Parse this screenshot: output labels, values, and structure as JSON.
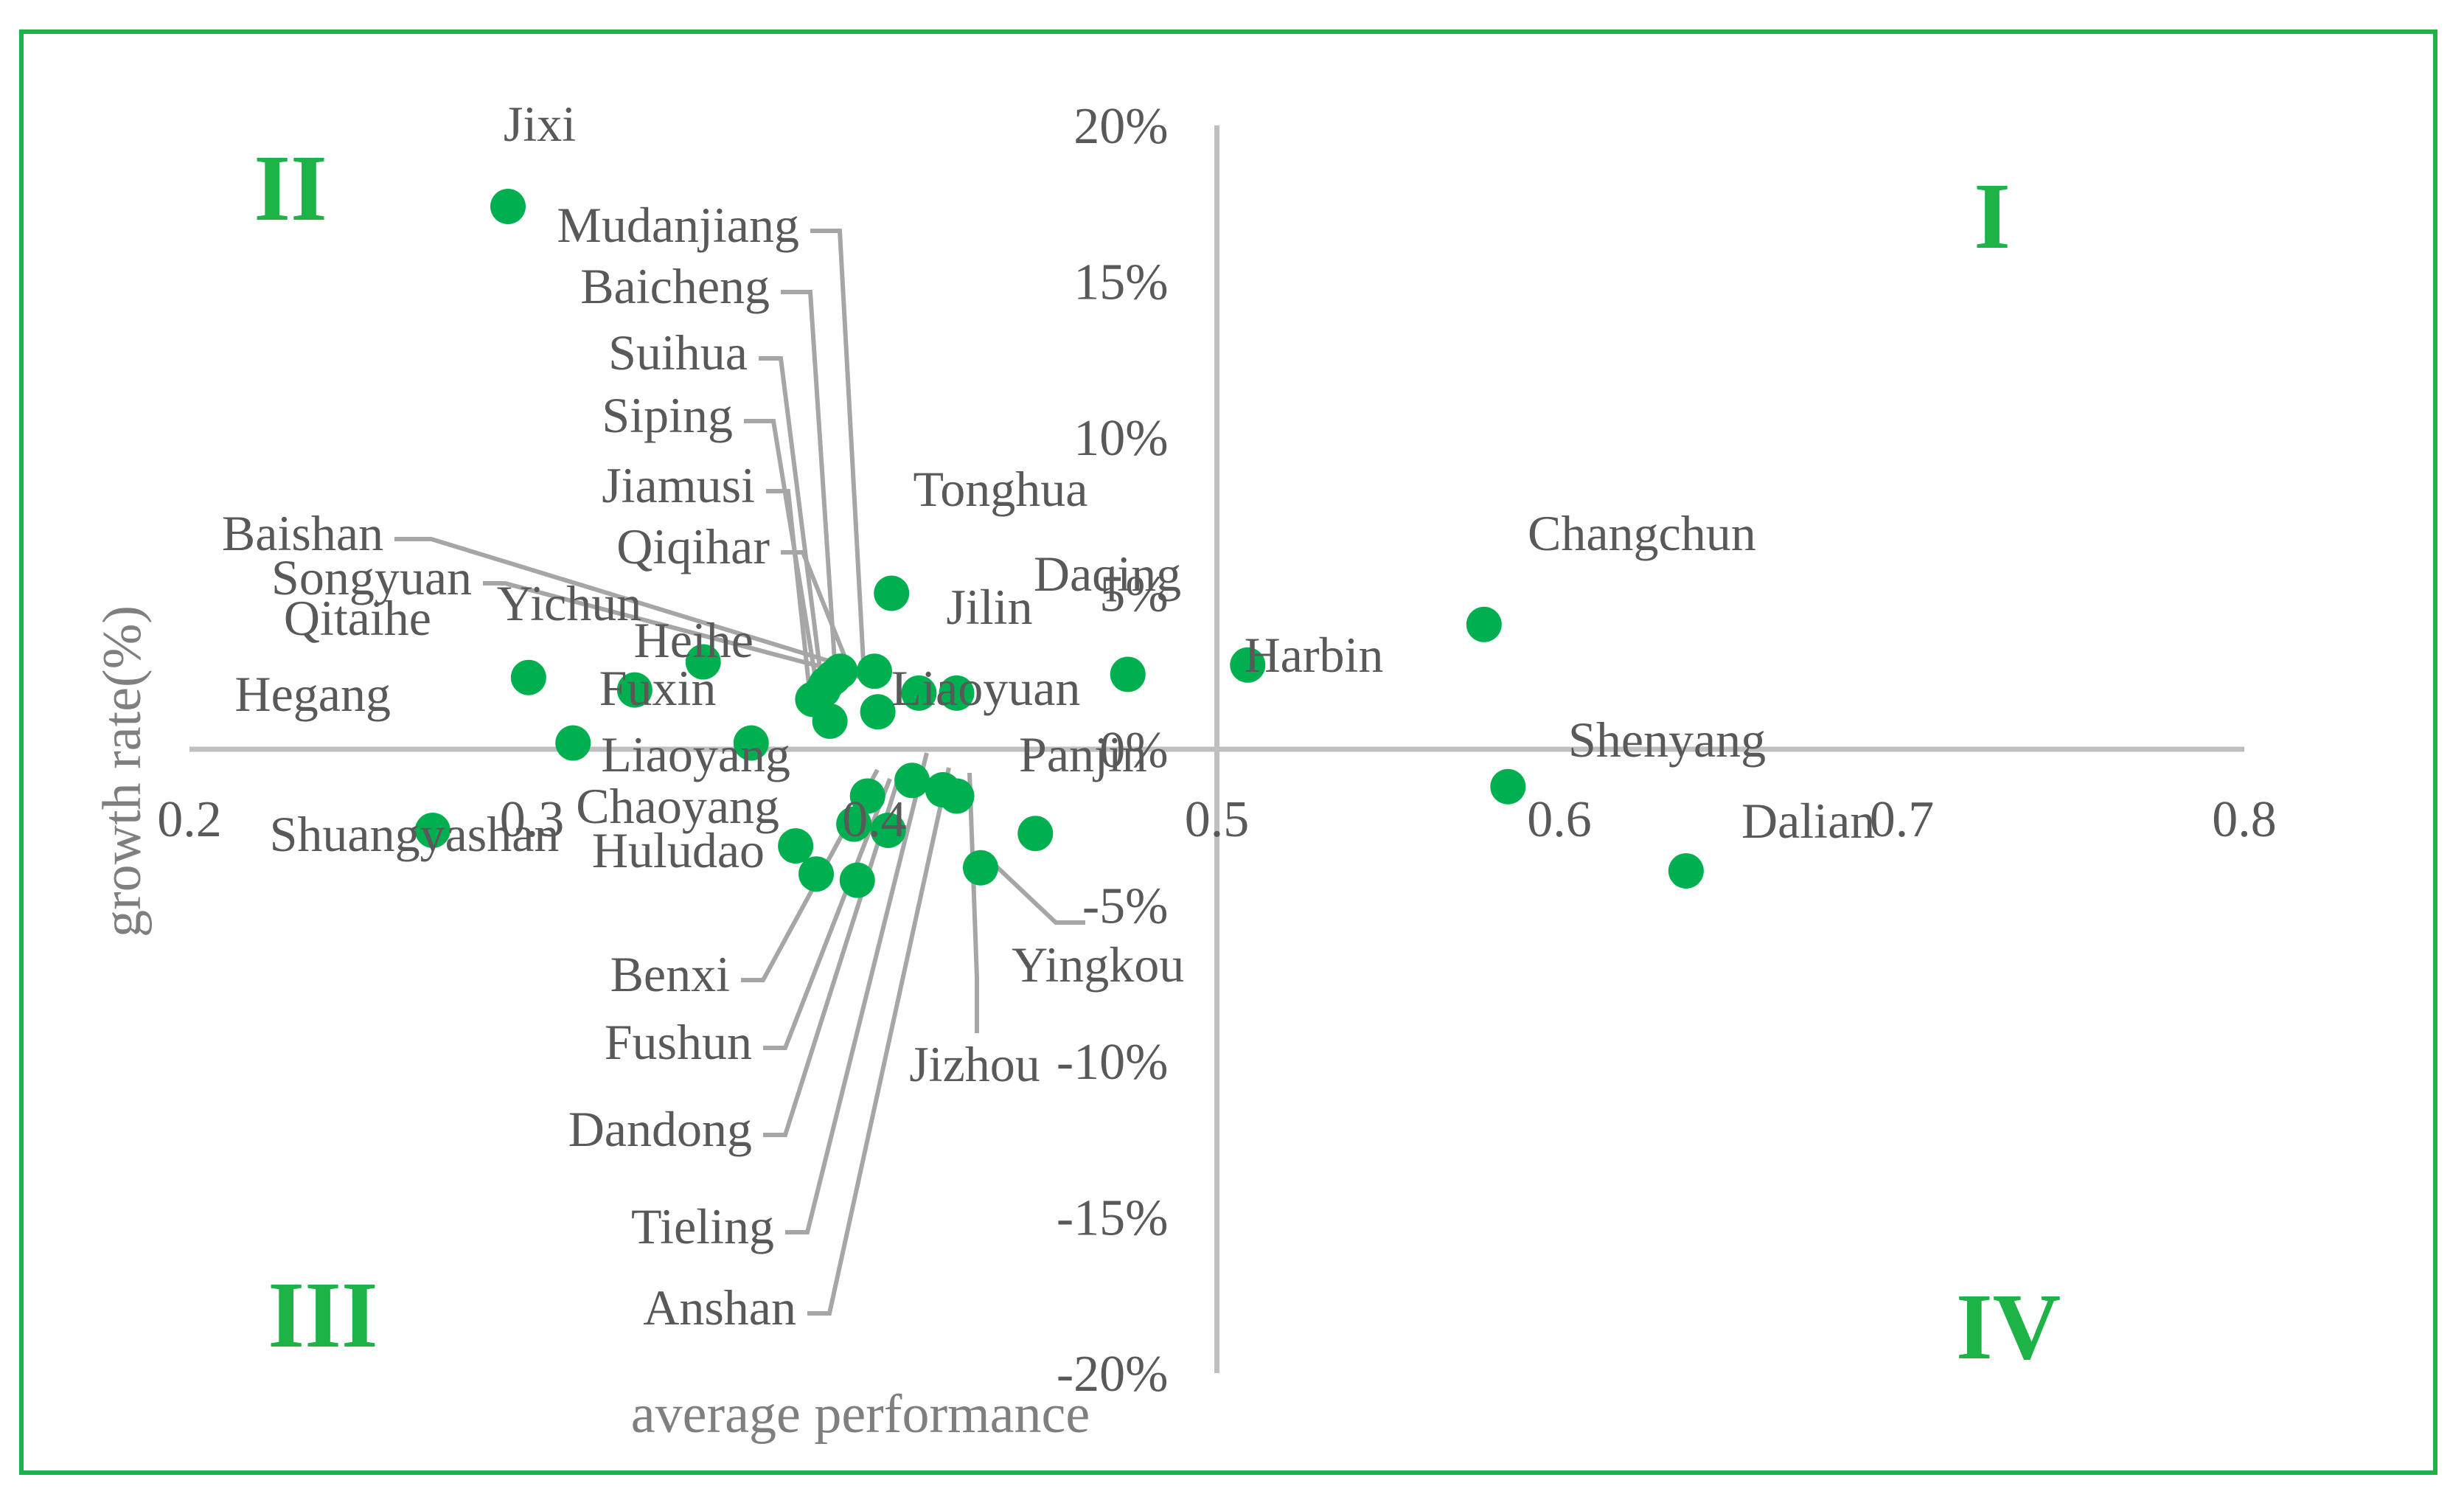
{
  "chart_data": {
    "type": "scatter",
    "title": "",
    "xlabel": "average performance",
    "ylabel": "growth rate(%)",
    "xlim": [
      0.2,
      0.8
    ],
    "ylim": [
      -20,
      20
    ],
    "x_ticks": [
      "0.2",
      "0.3",
      "0.4",
      "0.5",
      "0.6",
      "0.7",
      "0.8"
    ],
    "y_ticks": [
      "20%",
      "15%",
      "10%",
      "5%",
      "0%",
      "-5%",
      "-10%",
      "-15%",
      "-20%"
    ],
    "x_crosses_at": 0.5,
    "y_crosses_at": 0,
    "marker_color": "#00b050",
    "quadrant_color": "#1db347",
    "quadrants": [
      "I",
      "II",
      "III",
      "IV"
    ],
    "points": [
      {
        "label": "Jixi",
        "x": 0.293,
        "y": 17.4
      },
      {
        "label": "Qitaihe",
        "x": 0.299,
        "y": 2.3
      },
      {
        "label": "Yichun",
        "x": 0.33,
        "y": 1.9
      },
      {
        "label": "Hegang",
        "x": 0.312,
        "y": 0.2
      },
      {
        "label": "Shuangyashan",
        "x": 0.271,
        "y": -2.6
      },
      {
        "label": "Baishan",
        "x": 0.35,
        "y": 2.8
      },
      {
        "label": "Fuxin",
        "x": 0.364,
        "y": 0.2
      },
      {
        "label": "Heihe",
        "x": 0.382,
        "y": 1.6
      },
      {
        "label": "Tonghua",
        "x": 0.405,
        "y": 5.0
      },
      {
        "label": "Mudanjiang",
        "x": 0.39,
        "y": 2.5
      },
      {
        "label": "Baicheng",
        "x": 0.388,
        "y": 2.3
      },
      {
        "label": "Suihua",
        "x": 0.386,
        "y": 2.1
      },
      {
        "label": "Siping",
        "x": 0.385,
        "y": 1.9
      },
      {
        "label": "Jiamusi",
        "x": 0.387,
        "y": 0.9
      },
      {
        "label": "Qiqihar",
        "x": 0.4,
        "y": 2.5
      },
      {
        "label": "Songyuan",
        "x": 0.401,
        "y": 1.2
      },
      {
        "label": "Jilin",
        "x": 0.413,
        "y": 1.8
      },
      {
        "label": "Liaoyuan",
        "x": 0.424,
        "y": 1.8
      },
      {
        "label": "Daqing",
        "x": 0.474,
        "y": 2.4
      },
      {
        "label": "Harbin",
        "x": 0.509,
        "y": 2.7
      },
      {
        "label": "Changchun",
        "x": 0.578,
        "y": 4.0
      },
      {
        "label": "Shenyang",
        "x": 0.585,
        "y": -1.2
      },
      {
        "label": "Dalian",
        "x": 0.637,
        "y": -3.9
      },
      {
        "label": "Liaoyang",
        "x": 0.398,
        "y": -1.5
      },
      {
        "label": "Chaoyang",
        "x": 0.377,
        "y": -3.1
      },
      {
        "label": "Huludao",
        "x": 0.383,
        "y": -4.0
      },
      {
        "label": "Benxi",
        "x": 0.394,
        "y": -2.4
      },
      {
        "label": "Fushun",
        "x": 0.404,
        "y": -2.6
      },
      {
        "label": "Dandong",
        "x": 0.395,
        "y": -4.2
      },
      {
        "label": "Tieling",
        "x": 0.411,
        "y": -1.0
      },
      {
        "label": "Anshan",
        "x": 0.42,
        "y": -1.3
      },
      {
        "label": "Jizhou",
        "x": 0.424,
        "y": -1.5
      },
      {
        "label": "Yingkou",
        "x": 0.431,
        "y": -3.8
      },
      {
        "label": "Panjin",
        "x": 0.447,
        "y": -2.7
      }
    ]
  }
}
